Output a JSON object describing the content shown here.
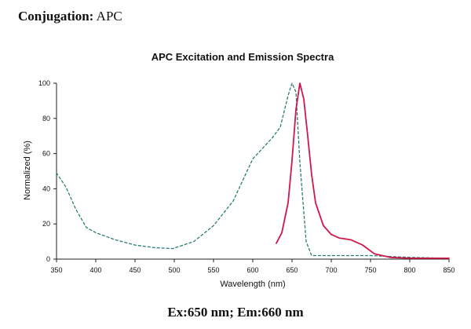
{
  "heading": {
    "label": "Conjugation:",
    "value": "APC"
  },
  "caption": "Ex:650 nm; Em:660 nm",
  "colors": {
    "excitation": "#2a7d74",
    "emission": "#d0174a",
    "axis": "#222222"
  },
  "chart_data": {
    "type": "line",
    "title": "APC Excitation and Emission Spectra",
    "xlabel": "Wavelength (nm)",
    "ylabel": "Normalized (%)",
    "xlim": [
      350,
      850
    ],
    "ylim": [
      0,
      100
    ],
    "xticks": [
      350,
      400,
      450,
      500,
      550,
      600,
      650,
      700,
      750,
      800,
      850
    ],
    "yticks": [
      0,
      20,
      40,
      60,
      80,
      100
    ],
    "grid": false,
    "legend": "none",
    "series": [
      {
        "name": "Excitation",
        "style": "dashed",
        "x": [
          350,
          362,
          375,
          388,
          400,
          425,
          450,
          475,
          498,
          525,
          550,
          575,
          600,
          625,
          635,
          645,
          650,
          655,
          660,
          668,
          675,
          700,
          750,
          800,
          850
        ],
        "y": [
          49,
          41,
          28,
          18,
          15,
          11,
          8,
          6.5,
          6,
          10,
          19,
          33,
          57,
          69,
          75,
          93,
          100,
          95,
          55,
          10,
          2,
          2,
          2,
          1,
          0.5
        ]
      },
      {
        "name": "Emission",
        "style": "solid",
        "x": [
          630,
          637,
          645,
          650,
          655,
          660,
          665,
          670,
          675,
          680,
          690,
          700,
          710,
          725,
          740,
          755,
          775,
          800,
          825,
          850
        ],
        "y": [
          9,
          15,
          32,
          56,
          85,
          100,
          91,
          70,
          48,
          32,
          19,
          14,
          12,
          11,
          8,
          3,
          1,
          0.5,
          0.5,
          0.5
        ]
      }
    ]
  }
}
